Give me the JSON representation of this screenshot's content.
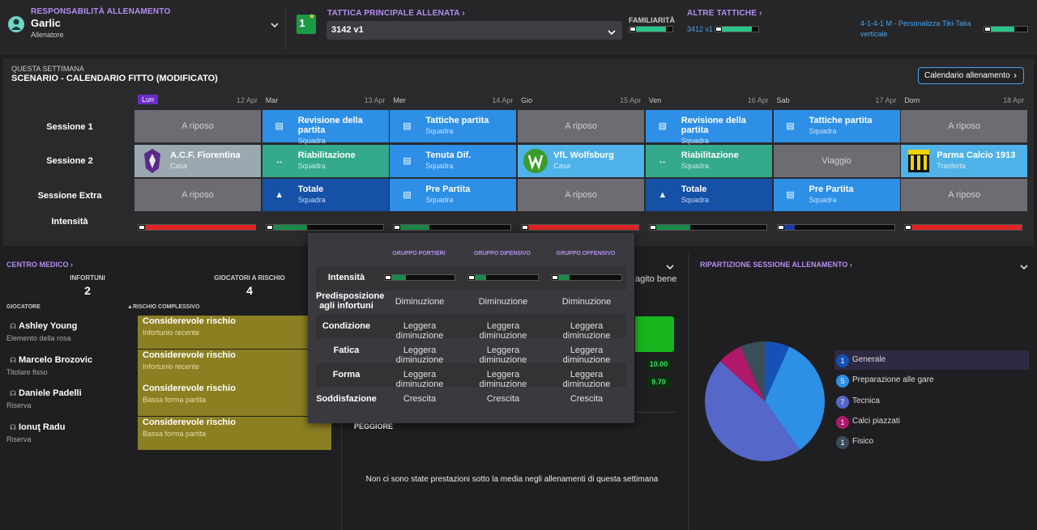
{
  "header": {
    "role_title": "RESPONSABILITÀ ALLENAMENTO",
    "coach_name": "Garlic",
    "coach_role": "Allenatore",
    "main_tactic_title": "TATTICA PRINCIPALE ALLENATA",
    "tactic_rank": "1",
    "tactic_selected": "3142 v1",
    "familiarity_label": "FAMILIARITÀ",
    "familiarity_level": 0.85,
    "other_tactics_title": "ALTRE TATTICHE",
    "other_tactic_1": "3412 v1",
    "other_tactic_1_level": 0.85,
    "other_tactic_2": "4-1-4-1 M - Personalizza Tiki-Taka verticale",
    "other_tactic_2_level": 0.7
  },
  "schedule": {
    "week_label": "QUESTA SETTIMANA",
    "scenario": "SCENARIO - CALENDARIO FITTO (MODIFICATO)",
    "calendar_button": "Calendario allenamento",
    "row_labels": [
      "Sessione 1",
      "Sessione 2",
      "Sessione Extra",
      "Intensità"
    ],
    "days": [
      {
        "name": "Lun",
        "date": "12 Apr"
      },
      {
        "name": "Mar",
        "date": "13 Apr"
      },
      {
        "name": "Mer",
        "date": "14 Apr"
      },
      {
        "name": "Gio",
        "date": "15 Apr"
      },
      {
        "name": "Ven",
        "date": "16 Apr"
      },
      {
        "name": "Sab",
        "date": "17 Apr"
      },
      {
        "name": "Dom",
        "date": "18 Apr"
      }
    ],
    "sessions": [
      [
        {
          "title": "A riposo",
          "sub": "",
          "kind": "rest"
        },
        {
          "title": "Revisione della partita",
          "sub": "Squadra",
          "kind": "blue",
          "icon": "clipboard-icon"
        },
        {
          "title": "Tattiche partita",
          "sub": "Squadra",
          "kind": "blue",
          "icon": "clipboard-icon"
        },
        {
          "title": "A riposo",
          "sub": "",
          "kind": "rest"
        },
        {
          "title": "Revisione della partita",
          "sub": "Squadra",
          "kind": "blue",
          "icon": "clipboard-icon"
        },
        {
          "title": "Tattiche partita",
          "sub": "Squadra",
          "kind": "blue",
          "icon": "clipboard-icon"
        },
        {
          "title": "A riposo",
          "sub": "",
          "kind": "rest"
        }
      ],
      [
        {
          "title": "A.C.F. Fiorentina",
          "sub": "Casa",
          "kind": "lgrey",
          "icon": "fiorentina-crest-icon"
        },
        {
          "title": "Riabilitazione",
          "sub": "Squadra",
          "kind": "teal",
          "icon": "arrows-icon"
        },
        {
          "title": "Tenuta Dif.",
          "sub": "Squadra",
          "kind": "blue",
          "icon": "clipboard-icon"
        },
        {
          "title": "VfL Wolfsburg",
          "sub": "Casa",
          "kind": "lblue",
          "icon": "wolfsburg-crest-icon"
        },
        {
          "title": "Riabilitazione",
          "sub": "Squadra",
          "kind": "teal",
          "icon": "arrows-icon"
        },
        {
          "title": "Viaggio",
          "sub": "",
          "kind": "grey"
        },
        {
          "title": "Parma Calcio 1913",
          "sub": "Trasferta",
          "kind": "lblue",
          "icon": "parma-crest-icon"
        }
      ],
      [
        {
          "title": "A riposo",
          "sub": "",
          "kind": "rest"
        },
        {
          "title": "Totale",
          "sub": "Squadra",
          "kind": "dblue",
          "icon": "cone-icon"
        },
        {
          "title": "Pre Partita",
          "sub": "Squadra",
          "kind": "blue",
          "icon": "clipboard-icon"
        },
        {
          "title": "A riposo",
          "sub": "",
          "kind": "rest"
        },
        {
          "title": "Totale",
          "sub": "Squadra",
          "kind": "dblue",
          "icon": "cone-icon"
        },
        {
          "title": "Pre Partita",
          "sub": "Squadra",
          "kind": "blue",
          "icon": "clipboard-icon"
        },
        {
          "title": "A riposo",
          "sub": "",
          "kind": "rest"
        }
      ]
    ],
    "intensity": [
      {
        "level": 1.0,
        "color": "#e02424"
      },
      {
        "level": 0.35,
        "color": "#1a8a4a"
      },
      {
        "level": 0.3,
        "color": "#1a8a4a"
      },
      {
        "level": 1.0,
        "color": "#e02424"
      },
      {
        "level": 0.35,
        "color": "#1a8a4a"
      },
      {
        "level": 0.15,
        "color": "#1a3aa0"
      },
      {
        "level": 1.0,
        "color": "#e02424"
      }
    ]
  },
  "medical": {
    "title": "CENTRO MEDICO",
    "injuries_label": "INFORTUNI",
    "injuries_value": "2",
    "at_risk_label": "GIOCATORI A RISCHIO",
    "at_risk_value": "4",
    "col_player": "GIOCATORE",
    "col_risk": "RISCHIO COMPLESSIVO",
    "players": [
      {
        "name": "Ashley Young",
        "role": "Elemento della rosa",
        "risk": "Considerevole rischio",
        "reason": "Infortunio recente"
      },
      {
        "name": "Marcelo Brozovic",
        "role": "Titolare fisso",
        "risk": "Considerevole rischio",
        "reason": "Infortunio recente"
      },
      {
        "name": "Daniele Padelli",
        "role": "Riserva",
        "risk": "Considerevole rischio",
        "reason": "Bassa forma partita"
      },
      {
        "name": "Ionuţ Radu",
        "role": "Riserva",
        "risk": "Considerevole rischio",
        "reason": "Bassa forma partita"
      }
    ]
  },
  "performance": {
    "partial_text": "agito bene",
    "value_1": "10.00",
    "value_2": "9.70",
    "worst_label": "PEGGIORE",
    "empty_text": "Non ci sono state prestazioni sotto la media negli allenamenti di questa settimana"
  },
  "breakdown": {
    "title": "RIPARTIZIONE SESSIONE ALLENAMENTO",
    "items": [
      {
        "count": "1",
        "label": "Generale",
        "color": "#1452b8"
      },
      {
        "count": "5",
        "label": "Preparazione alle gare",
        "color": "#2d8fe6"
      },
      {
        "count": "7",
        "label": "Tecnica",
        "color": "#5567c8"
      },
      {
        "count": "1",
        "label": "Calci piazzati",
        "color": "#b0186a"
      },
      {
        "count": "1",
        "label": "Fisico",
        "color": "#3a4d5a"
      }
    ]
  },
  "popup": {
    "group_headers": [
      "GRUPPO PORTIERI",
      "GRUPPO DIFENSIVO",
      "GRUPPO OFFENSIVO"
    ],
    "intensity_label": "Intensità",
    "intensity_levels": [
      0.3,
      0.25,
      0.25
    ],
    "rows": [
      {
        "label": "Predisposizione agli infortuni",
        "values": [
          "Diminuzione",
          "Diminuzione",
          "Diminuzione"
        ]
      },
      {
        "label": "Condizione",
        "values": [
          "Leggera diminuzione",
          "Leggera diminuzione",
          "Leggera diminuzione"
        ]
      },
      {
        "label": "Fatica",
        "values": [
          "Leggera diminuzione",
          "Leggera diminuzione",
          "Leggera diminuzione"
        ]
      },
      {
        "label": "Forma",
        "values": [
          "Leggera diminuzione",
          "Leggera diminuzione",
          "Leggera diminuzione"
        ]
      },
      {
        "label": "Soddisfazione",
        "values": [
          "Crescita",
          "Crescita",
          "Crescita"
        ]
      }
    ]
  }
}
